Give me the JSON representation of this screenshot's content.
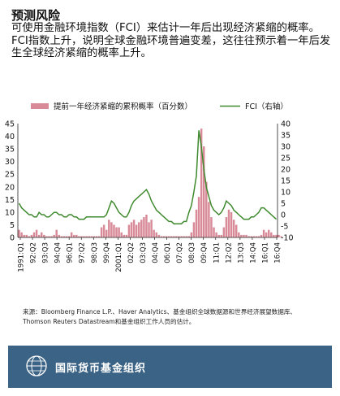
{
  "header": {
    "title": "预测风险",
    "subtitle": "可使用金融环境指数（FCI）来估计一年后出现经济紧缩的概率。FCI指数上升，说明全球金融环境普遍变差，这往往预示着一年后发生全球经济紧缩的概率上升。"
  },
  "source": "来源：Bloomberg Finance L.P.、Haver Analytics、基金组织全球数据源和世界经济展望数据库、Thomson Reuters Datastream和基金组织工作人员的估计。",
  "footer": {
    "org_name": "国际货币基金组织",
    "logo_icon": "imf-globe-logo-icon"
  },
  "colors": {
    "bar": "#d88a98",
    "line": "#3f8a2e",
    "footer_bg": "#3b6386"
  },
  "chart_data": {
    "type": "bar",
    "legend_position": "top",
    "grid": false,
    "series": [
      {
        "name": "提前一年经济紧缩的累积概率（百分数）",
        "type": "bar",
        "axis": "left",
        "color": "#d88a98"
      },
      {
        "name": "FCI（右轴）",
        "type": "line",
        "axis": "right",
        "color": "#3f8a2e"
      }
    ],
    "x_tick_labels": [
      "1991:Q1",
      "92:Q2",
      "93:Q3",
      "94:Q4",
      "96:Q1",
      "97:Q2",
      "98:Q3",
      "99:Q4",
      "2001:Q1",
      "02:Q2",
      "03:Q3",
      "04:Q4",
      "06:Q1",
      "07:Q2",
      "08:Q3",
      "09:Q4",
      "11:Q1",
      "12:Q2",
      "13:Q3",
      "14:Q4",
      "16:Q1",
      "16:Q4"
    ],
    "left_axis": {
      "ylim": [
        0,
        45
      ],
      "ticks": [
        0,
        5,
        10,
        15,
        20,
        25,
        30,
        35,
        40,
        45
      ]
    },
    "right_axis": {
      "ylim": [
        -10,
        40
      ],
      "ticks": [
        -10,
        -5,
        0,
        5,
        10,
        15,
        20,
        25,
        30,
        35,
        40
      ]
    },
    "quarters": 104,
    "bar_values": [
      3,
      2,
      1,
      1,
      0.5,
      1,
      2,
      3,
      1,
      2,
      1,
      0.5,
      0.5,
      0.5,
      1,
      3,
      1,
      0.5,
      0.5,
      0.5,
      0.5,
      2,
      1,
      1,
      0.5,
      0.5,
      0.5,
      0.5,
      0.5,
      0.5,
      0.5,
      0.5,
      0.5,
      4,
      5,
      3,
      7,
      6,
      5,
      4,
      4,
      2,
      1,
      1,
      5,
      6,
      7,
      5,
      6,
      7,
      8,
      9,
      6,
      7,
      3,
      2,
      1,
      0.5,
      0.5,
      0.5,
      0.5,
      0.5,
      0.5,
      0.5,
      0.5,
      0.5,
      0.5,
      0.5,
      0.5,
      2,
      6,
      11,
      16,
      43,
      36,
      22,
      14,
      8,
      4,
      2,
      1,
      1,
      4,
      8,
      11,
      10,
      7,
      5,
      2,
      1,
      1,
      1,
      0.5,
      0.5,
      0.5,
      0.5,
      0.5,
      1,
      3,
      2,
      3,
      2,
      1,
      1,
      1,
      0.5
    ],
    "fci_values": [
      5,
      3,
      2,
      1,
      0,
      0,
      -1,
      -1,
      1,
      0,
      0,
      -1,
      -1,
      0,
      1,
      1,
      0,
      0,
      -1,
      -1,
      0,
      0,
      -1,
      -1,
      -2,
      -2,
      -2,
      -1,
      -1,
      -1,
      -1,
      -1,
      -1,
      -1,
      -1,
      0,
      3,
      6,
      5,
      3,
      1,
      0,
      -1,
      -1,
      1,
      4,
      6,
      7,
      8,
      9,
      10,
      11,
      9,
      6,
      4,
      2,
      1,
      0,
      -1,
      -2,
      -3,
      -3,
      -4,
      -4,
      -4,
      -4,
      -3,
      -3,
      1,
      4,
      10,
      17,
      37,
      30,
      20,
      12,
      8,
      4,
      2,
      1,
      0,
      1,
      3,
      6,
      5,
      4,
      2,
      1,
      0,
      -1,
      -2,
      -2,
      -2,
      -1,
      -1,
      0,
      1,
      3,
      3,
      2,
      1,
      0,
      -1,
      -2
    ]
  }
}
